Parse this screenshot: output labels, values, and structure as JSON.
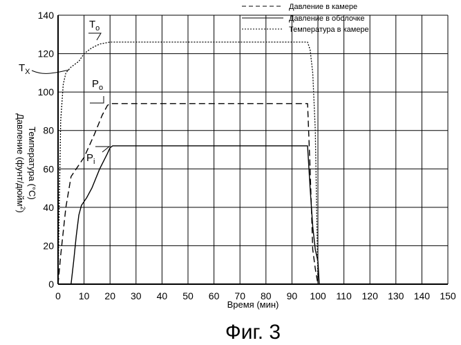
{
  "chart_data": {
    "type": "line",
    "title": "",
    "xlabel": "Время (мин)",
    "ylabel_lines": [
      "Температура (°C)",
      "Давление (фунт/дюйм",
      "2",
      ")"
    ],
    "xlim": [
      0,
      150
    ],
    "ylim": [
      0,
      140
    ],
    "xticks": [
      "0",
      "10",
      "20",
      "30",
      "40",
      "50",
      "60",
      "70",
      "80",
      "90",
      "100",
      "110",
      "120",
      "130",
      "140",
      "150"
    ],
    "yticks": [
      "0",
      "20",
      "40",
      "60",
      "80",
      "100",
      "120",
      "140"
    ],
    "grid": true,
    "legend_placement": "top-right",
    "series": [
      {
        "name": "Давление в камере",
        "style": "dashed",
        "points": [
          [
            0,
            0
          ],
          [
            1,
            15
          ],
          [
            3,
            40
          ],
          [
            5,
            56
          ],
          [
            7,
            60
          ],
          [
            10,
            66
          ],
          [
            14,
            78
          ],
          [
            17,
            88
          ],
          [
            19,
            93
          ],
          [
            20,
            94
          ],
          [
            40,
            94
          ],
          [
            60,
            94
          ],
          [
            80,
            94
          ],
          [
            96,
            94
          ],
          [
            97,
            60
          ],
          [
            98,
            18
          ],
          [
            99,
            8
          ],
          [
            100,
            0
          ]
        ]
      },
      {
        "name": "Давление в оболочке",
        "style": "solid",
        "points": [
          [
            5,
            0
          ],
          [
            6,
            12
          ],
          [
            7,
            25
          ],
          [
            8,
            36
          ],
          [
            9,
            41
          ],
          [
            11,
            45
          ],
          [
            13,
            50
          ],
          [
            16,
            60
          ],
          [
            19,
            68
          ],
          [
            20,
            71
          ],
          [
            21,
            72
          ],
          [
            40,
            72
          ],
          [
            60,
            72
          ],
          [
            80,
            72
          ],
          [
            96,
            72
          ],
          [
            97,
            50
          ],
          [
            98,
            30
          ],
          [
            99,
            18
          ],
          [
            100,
            12
          ],
          [
            100.5,
            0
          ]
        ]
      },
      {
        "name": "Температура в камере",
        "style": "dotted",
        "points": [
          [
            0,
            0
          ],
          [
            0.5,
            45
          ],
          [
            1,
            85
          ],
          [
            2,
            104
          ],
          [
            3,
            110
          ],
          [
            5,
            113
          ],
          [
            8,
            116
          ],
          [
            10,
            120
          ],
          [
            13,
            123
          ],
          [
            16,
            125
          ],
          [
            20,
            126
          ],
          [
            40,
            126
          ],
          [
            60,
            126
          ],
          [
            80,
            126
          ],
          [
            96,
            126
          ],
          [
            97,
            122
          ],
          [
            98,
            110
          ],
          [
            99,
            80
          ],
          [
            99.5,
            40
          ],
          [
            100,
            0
          ]
        ]
      }
    ],
    "annotations": [
      {
        "id": "To",
        "main": "T",
        "sub": "o"
      },
      {
        "id": "Tx",
        "main": "T",
        "sub": "X"
      },
      {
        "id": "Po",
        "main": "P",
        "sub": "o"
      },
      {
        "id": "Pi",
        "main": "P",
        "sub": "i"
      }
    ]
  },
  "caption": "Фиг. 3"
}
